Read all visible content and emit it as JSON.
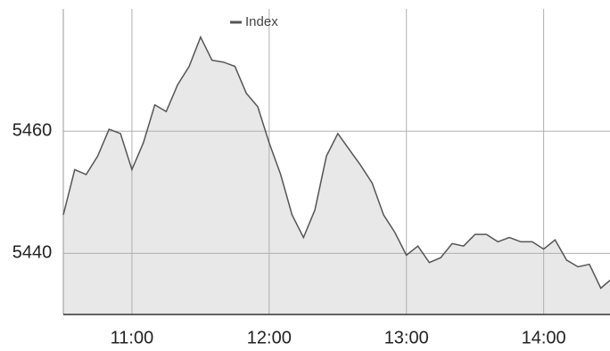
{
  "chart_data": {
    "type": "area",
    "x": [
      "10:30",
      "10:35",
      "10:40",
      "10:45",
      "10:50",
      "10:55",
      "11:00",
      "11:05",
      "11:10",
      "11:15",
      "11:20",
      "11:25",
      "11:30",
      "11:35",
      "11:40",
      "11:45",
      "11:50",
      "11:55",
      "12:00",
      "12:05",
      "12:10",
      "12:15",
      "12:20",
      "12:25",
      "12:30",
      "12:35",
      "12:40",
      "12:45",
      "12:50",
      "12:55",
      "13:00",
      "13:05",
      "13:10",
      "13:15",
      "13:20",
      "13:25",
      "13:30",
      "13:35",
      "13:40",
      "13:45",
      "13:50",
      "13:55",
      "14:00",
      "14:05",
      "14:10",
      "14:15",
      "14:20",
      "14:25",
      "14:29"
    ],
    "series": [
      {
        "name": "Index",
        "color": "#555555",
        "fill": "#e8e8e8",
        "values": [
          5446.3,
          5453.7,
          5452.9,
          5455.9,
          5460.3,
          5459.6,
          5453.7,
          5458.1,
          5464.3,
          5463.2,
          5467.6,
          5470.6,
          5475.4,
          5471.6,
          5471.3,
          5470.6,
          5466.2,
          5464.0,
          5458.1,
          5452.9,
          5446.3,
          5442.6,
          5447.1,
          5455.9,
          5459.6,
          5457.0,
          5454.4,
          5451.5,
          5446.3,
          5443.4,
          5439.7,
          5441.2,
          5438.5,
          5439.3,
          5441.6,
          5441.2,
          5443.1,
          5443.1,
          5441.9,
          5442.6,
          5441.9,
          5441.9,
          5440.7,
          5442.2,
          5438.9,
          5437.8,
          5438.2,
          5434.3,
          5435.6
        ]
      }
    ],
    "xlim": [
      "10:30",
      "14:29"
    ],
    "xticks": [
      "11:00",
      "12:00",
      "13:00",
      "14:00"
    ],
    "ylim": [
      5430,
      5480
    ],
    "yticks": [
      5440,
      5460
    ],
    "grid": true,
    "legend": "top"
  }
}
